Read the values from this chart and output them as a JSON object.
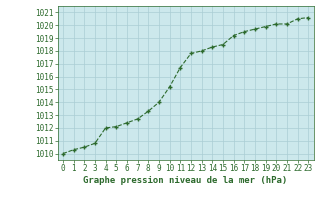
{
  "x": [
    0,
    1,
    2,
    3,
    4,
    5,
    6,
    7,
    8,
    9,
    10,
    11,
    12,
    13,
    14,
    15,
    16,
    17,
    18,
    19,
    20,
    21,
    22,
    23
  ],
  "y": [
    1010.0,
    1010.3,
    1010.5,
    1010.8,
    1012.0,
    1012.1,
    1012.4,
    1012.7,
    1013.3,
    1014.0,
    1015.2,
    1016.7,
    1017.8,
    1018.0,
    1018.3,
    1018.5,
    1019.2,
    1019.5,
    1019.7,
    1019.9,
    1020.1,
    1020.1,
    1020.5,
    1020.6
  ],
  "line_color": "#2d6a2d",
  "marker": "+",
  "bg_plot": "#cce8ec",
  "bg_fig": "#ffffff",
  "grid_color": "#aacdd4",
  "xlabel": "Graphe pression niveau de la mer (hPa)",
  "ylim": [
    1009.5,
    1021.5
  ],
  "yticks": [
    1010,
    1011,
    1012,
    1013,
    1014,
    1015,
    1016,
    1017,
    1018,
    1019,
    1020,
    1021
  ],
  "xticks": [
    0,
    1,
    2,
    3,
    4,
    5,
    6,
    7,
    8,
    9,
    10,
    11,
    12,
    13,
    14,
    15,
    16,
    17,
    18,
    19,
    20,
    21,
    22,
    23
  ],
  "tick_fontsize": 5.5,
  "label_fontsize": 6.5
}
